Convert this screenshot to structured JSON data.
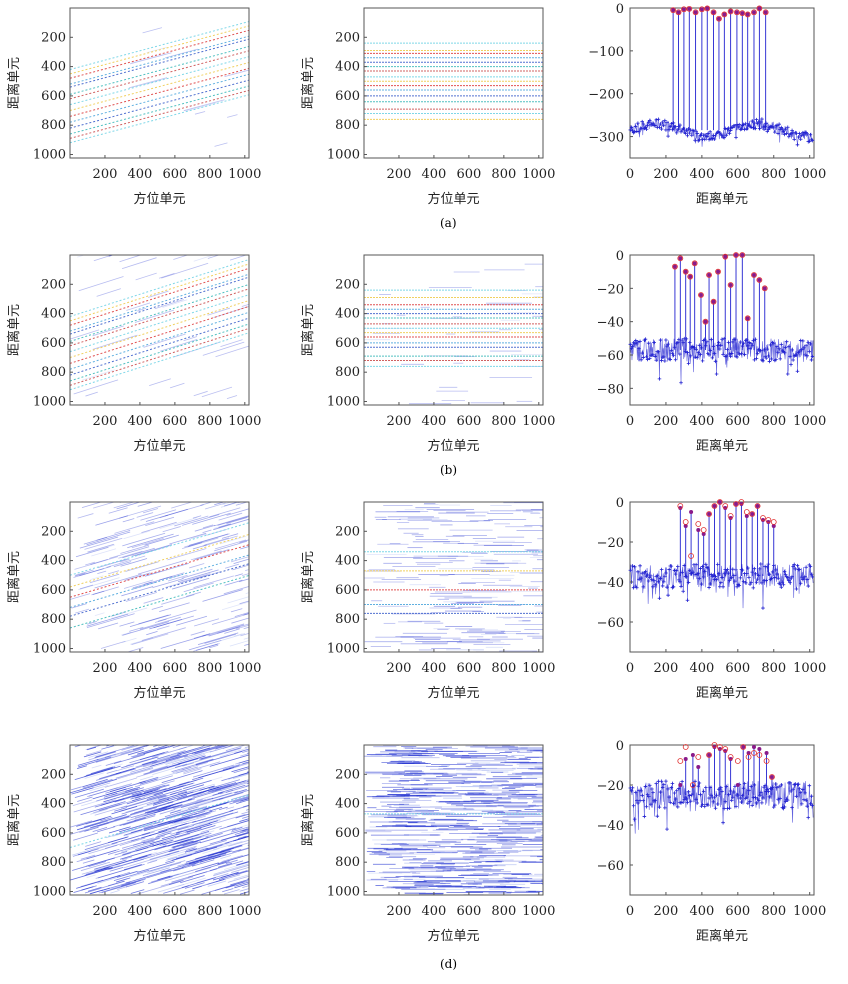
{
  "captions": [
    "(a)",
    "(b)",
    "(d)"
  ],
  "chart_data": [
    {
      "row": "a",
      "col": 0,
      "type": "heatmap",
      "kind": "slant",
      "xlabel": "方位单元",
      "ylabel": "距离单元",
      "xticks": [
        200,
        400,
        600,
        800,
        1000
      ],
      "yticks": [
        200,
        400,
        600,
        800,
        1000
      ],
      "xlim": [
        0,
        1024
      ],
      "ylim": [
        0,
        1024
      ],
      "line_starts": [
        420,
        450,
        480,
        520,
        540,
        590,
        620,
        660,
        700,
        740,
        780,
        820,
        860,
        890,
        920
      ],
      "slope": -0.32,
      "noise": 0.02
    },
    {
      "row": "a",
      "col": 1,
      "type": "heatmap",
      "kind": "flat",
      "xlabel": "方位单元",
      "ylabel": "距离单元",
      "xticks": [
        200,
        400,
        600,
        800,
        1000
      ],
      "yticks": [
        200,
        400,
        600,
        800,
        1000
      ],
      "xlim": [
        0,
        1024
      ],
      "ylim": [
        0,
        1024
      ],
      "line_rows": [
        240,
        290,
        310,
        340,
        370,
        400,
        430,
        470,
        500,
        530,
        560,
        600,
        640,
        690,
        720,
        760
      ],
      "noise": 0.0
    },
    {
      "row": "a",
      "col": 2,
      "type": "line",
      "xlabel": "距离单元",
      "xticks": [
        0,
        200,
        400,
        600,
        800,
        1000
      ],
      "yticks": [
        0,
        -100,
        -200,
        -300
      ],
      "xlim": [
        0,
        1024
      ],
      "ylim": [
        -350,
        0
      ],
      "floor": -285,
      "floor_spread": 12,
      "peaks_x": [
        240,
        270,
        300,
        330,
        365,
        400,
        430,
        465,
        495,
        525,
        560,
        595,
        625,
        655,
        690,
        720,
        755
      ],
      "peaks_y": [
        -5,
        -10,
        -3,
        -2,
        -10,
        -3,
        -1,
        -10,
        -25,
        -15,
        -8,
        -10,
        -12,
        -15,
        -10,
        -1,
        -10
      ],
      "ref_y": [
        -5,
        -10,
        -3,
        -2,
        -10,
        -3,
        -1,
        -10,
        -25,
        -15,
        -8,
        -10,
        -12,
        -15,
        -10,
        -1,
        -10
      ]
    },
    {
      "row": "b",
      "col": 0,
      "type": "heatmap",
      "kind": "slant",
      "xlabel": "方位单元",
      "ylabel": "距离单元",
      "xticks": [
        200,
        400,
        600,
        800,
        1000
      ],
      "yticks": [
        200,
        400,
        600,
        800,
        1000
      ],
      "xlim": [
        0,
        1024
      ],
      "ylim": [
        0,
        1024
      ],
      "line_starts": [
        420,
        450,
        480,
        520,
        540,
        590,
        620,
        660,
        700,
        740,
        780,
        820,
        860,
        890,
        920
      ],
      "slope": -0.38,
      "noise": 0.06
    },
    {
      "row": "b",
      "col": 1,
      "type": "heatmap",
      "kind": "flat",
      "xlabel": "方位单元",
      "ylabel": "距离单元",
      "xticks": [
        200,
        400,
        600,
        800,
        1000
      ],
      "yticks": [
        200,
        400,
        600,
        800,
        1000
      ],
      "xlim": [
        0,
        1024
      ],
      "ylim": [
        0,
        1024
      ],
      "line_rows": [
        240,
        290,
        340,
        370,
        400,
        430,
        470,
        500,
        530,
        560,
        600,
        630,
        690,
        720,
        760
      ],
      "noise": 0.06
    },
    {
      "row": "b",
      "col": 2,
      "type": "line",
      "xlabel": "距离单元",
      "xticks": [
        0,
        200,
        400,
        600,
        800,
        1000
      ],
      "yticks": [
        0,
        -20,
        -40,
        -60,
        -80
      ],
      "xlim": [
        0,
        1024
      ],
      "ylim": [
        -90,
        0
      ],
      "floor": -57,
      "floor_spread": 7,
      "peaks_x": [
        250,
        280,
        310,
        335,
        360,
        395,
        420,
        440,
        465,
        490,
        530,
        560,
        590,
        625,
        655,
        690,
        720,
        750
      ],
      "peaks_y": [
        -7,
        -2,
        -10,
        -13,
        -5,
        -24,
        -40,
        -12,
        -28,
        -10,
        -1,
        -18,
        0,
        0,
        -38,
        -12,
        -15,
        -20
      ],
      "ref_y": [
        -7,
        -2,
        -10,
        -13,
        -5,
        -24,
        -40,
        -12,
        -28,
        -10,
        -1,
        -18,
        0,
        0,
        -38,
        -12,
        -15,
        -20
      ]
    },
    {
      "row": "c",
      "col": 0,
      "type": "heatmap",
      "kind": "slant",
      "xlabel": "方位单元",
      "ylabel": "距离单元",
      "xticks": [
        200,
        400,
        600,
        800,
        1000
      ],
      "yticks": [
        200,
        400,
        600,
        800,
        1000
      ],
      "xlim": [
        0,
        1024
      ],
      "ylim": [
        0,
        1024
      ],
      "line_starts": [
        500,
        580,
        650,
        720,
        780,
        860
      ],
      "slope": -0.35,
      "noise": 0.3
    },
    {
      "row": "c",
      "col": 1,
      "type": "heatmap",
      "kind": "flat",
      "xlabel": "方位单元",
      "ylabel": "距离单元",
      "xticks": [
        200,
        400,
        600,
        800,
        1000
      ],
      "yticks": [
        200,
        400,
        600,
        800,
        1000
      ],
      "xlim": [
        0,
        1024
      ],
      "ylim": [
        0,
        1024
      ],
      "line_rows": [
        340,
        470,
        600,
        700,
        760
      ],
      "noise": 0.3
    },
    {
      "row": "c",
      "col": 2,
      "type": "line",
      "xlabel": "距离单元",
      "xticks": [
        0,
        200,
        400,
        600,
        800,
        1000
      ],
      "yticks": [
        0,
        -20,
        -40,
        -60
      ],
      "xlim": [
        0,
        1024
      ],
      "ylim": [
        -75,
        0
      ],
      "floor": -37,
      "floor_spread": 6,
      "peaks_x": [
        280,
        310,
        340,
        380,
        410,
        440,
        470,
        500,
        530,
        560,
        590,
        620,
        650,
        680,
        710,
        740,
        770,
        800
      ],
      "peaks_y": [
        -3,
        -12,
        -5,
        -14,
        -16,
        -6,
        -2,
        0,
        -3,
        -8,
        -1,
        -1,
        -7,
        -6,
        -2,
        -9,
        -10,
        -12
      ],
      "ref_y": [
        -2,
        -10,
        -27,
        -11,
        -14,
        -6,
        -2,
        0,
        -2,
        -7,
        -1,
        0,
        -5,
        -6,
        -2,
        -8,
        -9,
        -10
      ]
    },
    {
      "row": "d",
      "col": 0,
      "type": "heatmap",
      "kind": "slant",
      "xlabel": "方位单元",
      "ylabel": "距离单元",
      "xticks": [
        200,
        400,
        600,
        800,
        1000
      ],
      "yticks": [
        200,
        400,
        600,
        800,
        1000
      ],
      "xlim": [
        0,
        1024
      ],
      "ylim": [
        0,
        1024
      ],
      "line_starts": [
        700
      ],
      "slope": -0.35,
      "noise": 0.9
    },
    {
      "row": "d",
      "col": 1,
      "type": "heatmap",
      "kind": "flat",
      "xlabel": "方位单元",
      "ylabel": "距离单元",
      "xticks": [
        200,
        400,
        600,
        800,
        1000
      ],
      "yticks": [
        200,
        400,
        600,
        800,
        1000
      ],
      "xlim": [
        0,
        1024
      ],
      "ylim": [
        0,
        1024
      ],
      "line_rows": [
        470
      ],
      "noise": 0.9
    },
    {
      "row": "d",
      "col": 2,
      "type": "line",
      "xlabel": "距离单元",
      "xticks": [
        0,
        200,
        400,
        600,
        800,
        1000
      ],
      "yticks": [
        0,
        -20,
        -40,
        -60
      ],
      "xlim": [
        0,
        1024
      ],
      "ylim": [
        -75,
        0
      ],
      "floor": -25,
      "floor_spread": 7,
      "peaks_x": [
        280,
        310,
        350,
        380,
        440,
        470,
        500,
        530,
        560,
        600,
        630,
        660,
        690,
        720,
        760,
        790
      ],
      "peaks_y": [
        -20,
        -7,
        -5,
        -11,
        -5,
        -1,
        -2,
        -3,
        -7,
        -20,
        -1,
        -4,
        -1,
        -2,
        -4,
        -16
      ],
      "ref_y": [
        -8,
        -1,
        -20,
        -6,
        -5,
        0,
        -1,
        -2,
        -6,
        -8,
        -1,
        -6,
        -4,
        -5,
        -8,
        -16
      ]
    }
  ],
  "colors": {
    "stem": "#2020d0",
    "peak_marker": "#8a1a8a",
    "ref_circle": "#e03030",
    "frame": "#555555"
  }
}
